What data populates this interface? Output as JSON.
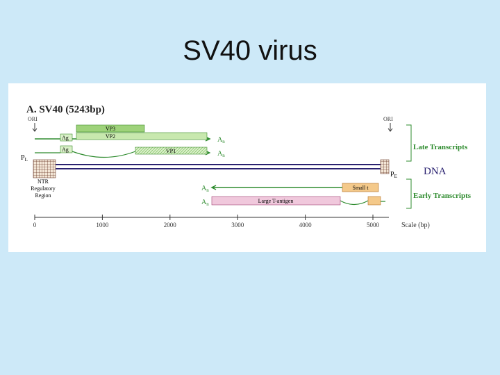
{
  "slide": {
    "title": "SV40 virus"
  },
  "figure": {
    "heading": "A.  SV40 (5243bp)",
    "ori_left": "ORI",
    "ori_right": "ORI",
    "late": {
      "vp3": "VP3",
      "vp2": "VP2",
      "vp1": "VP1",
      "agno_1": "Ag",
      "agno_2": "Ag",
      "polya_1": {
        "base": "A",
        "sub": "n"
      },
      "polya_2": {
        "base": "A",
        "sub": "n"
      }
    },
    "promoter_late": {
      "base": "P",
      "sub": "L"
    },
    "promoter_early": {
      "base": "P",
      "sub": "E"
    },
    "ntr": [
      "NTR",
      "Regulatory",
      "Region"
    ],
    "dna": "DNA",
    "late_transcripts": "Late Transcripts",
    "early_transcripts": "Early Transcripts",
    "early": {
      "small_t": "Small t",
      "large_t": "Large T-antigen",
      "polya_1": {
        "base": "A",
        "sub": "n"
      },
      "polya_2": {
        "base": "A",
        "sub": "n"
      }
    },
    "scale_ticks": [
      0,
      1000,
      2000,
      3000,
      4000,
      5000
    ],
    "scale_label": "Scale (bp)"
  }
}
